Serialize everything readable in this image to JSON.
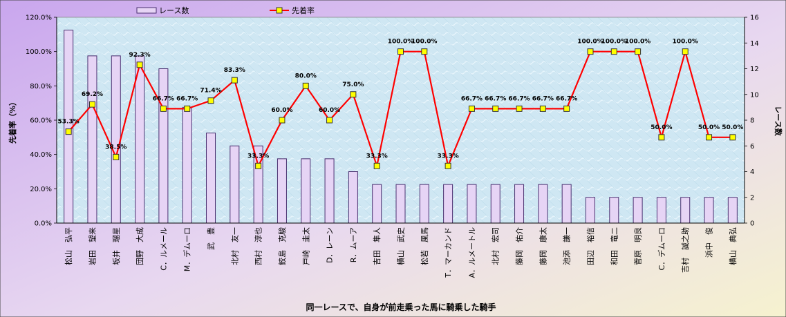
{
  "chart_data": {
    "type": "bar+line",
    "categories": [
      "松山　弘平",
      "岩田　望来",
      "坂井　瑠星",
      "団野　大成",
      "C．ルメール",
      "M．デムーロ",
      "武　豊",
      "北村　友一",
      "西村　淳也",
      "鮫島　克駿",
      "戸崎　圭太",
      "D．レーン",
      "R．ムーア",
      "吉田　隼人",
      "横山　武史",
      "松若　風馬",
      "T．マーカンド",
      "A．ルメートル",
      "北村　宏司",
      "藤岡　佑介",
      "藤岡　康太",
      "池添　謙一",
      "田辺　裕信",
      "和田　竜二",
      "菅原　明良",
      "C．デムーロ",
      "吉村　誠之助",
      "浜中　俊",
      "横山　典弘"
    ],
    "series": [
      {
        "name": "レース数",
        "axis": "right",
        "type": "bar",
        "values": [
          15,
          13,
          13,
          13,
          12,
          9,
          7,
          6,
          6,
          5,
          5,
          5,
          4,
          3,
          3,
          3,
          3,
          3,
          3,
          3,
          3,
          3,
          2,
          2,
          2,
          2,
          2,
          2,
          2
        ]
      },
      {
        "name": "先着率",
        "axis": "left",
        "type": "line",
        "values": [
          53.3,
          69.2,
          38.5,
          92.3,
          66.7,
          66.7,
          71.4,
          83.3,
          33.3,
          60.0,
          80.0,
          60.0,
          75.0,
          33.3,
          100.0,
          100.0,
          33.3,
          66.7,
          66.7,
          66.7,
          66.7,
          66.7,
          100.0,
          100.0,
          100.0,
          50.0,
          100.0,
          50.0,
          50.0
        ]
      }
    ],
    "data_labels": [
      "53.3%",
      "69.2%",
      "38.5%",
      "92.3%",
      "66.7%",
      "66.7%",
      "71.4%",
      "83.3%",
      "33.3%",
      "60.0%",
      "80.0%",
      "60.0%",
      "75.0%",
      "33.3%",
      "100.0%",
      "100.0%",
      "33.3%",
      "66.7%",
      "66.7%",
      "66.7%",
      "66.7%",
      "66.7%",
      "100.0%",
      "100.0%",
      "100.0%",
      "50.0%",
      "100.0%",
      "50.0%",
      "50.0%"
    ],
    "left_axis": {
      "label": "先着率（%）",
      "ticks": [
        "0.0%",
        "20.0%",
        "40.0%",
        "60.0%",
        "80.0%",
        "100.0%",
        "120.0%"
      ],
      "range": [
        0,
        120
      ]
    },
    "right_axis": {
      "label": "レース数",
      "ticks": [
        "0",
        "2",
        "4",
        "6",
        "8",
        "10",
        "12",
        "14",
        "16"
      ],
      "range": [
        0,
        16
      ]
    },
    "xlabel": "同一レースで、自身が前走乗った馬に騎乗した騎手",
    "legend_placement": "top",
    "colors": {
      "bar_fill": "#e6d4f5",
      "bar_stroke": "#4a3070",
      "line": "#ff0000",
      "marker_fill": "#ffff00",
      "marker_stroke": "#333333",
      "plot_bg": "#cde6f2"
    }
  }
}
